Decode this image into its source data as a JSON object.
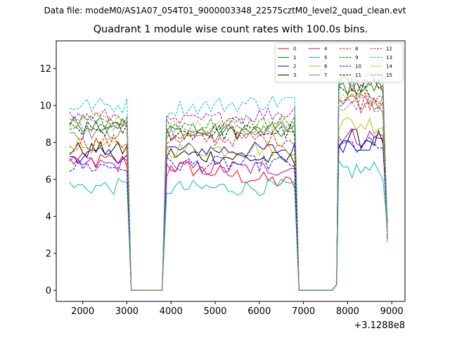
{
  "suptitle": "Data file: modeM0/AS1A07_054T01_9000003348_22575cztM0_level2_quad_clean.evt",
  "colors": [
    "#ff0000",
    "#008000",
    "#0000ff",
    "#000000",
    "#bf00bf",
    "#00bfbf",
    "#bfbf00",
    "#808080"
  ],
  "chart_data": {
    "type": "line",
    "title": "Quadrant 1 module wise count rates with 100.0s bins.",
    "offset_label": "+3.1288e8",
    "xlim": [
      1400,
      9300
    ],
    "ylim": [
      -0.6,
      13.5
    ],
    "xticks": [
      2000,
      3000,
      4000,
      5000,
      6000,
      7000,
      8000,
      9000
    ],
    "yticks": [
      0,
      2,
      4,
      6,
      8,
      10,
      12
    ],
    "legend": "top-right",
    "gaps": [
      [
        3100,
        3800
      ],
      [
        6900,
        7650
      ]
    ],
    "segments": [
      [
        1700,
        3100
      ],
      [
        3800,
        6900
      ],
      [
        7650,
        8900
      ]
    ],
    "series": [
      {
        "name": "0",
        "values": [
          7.0,
          6.8,
          5.7,
          11.2
        ]
      },
      {
        "name": "1",
        "values": [
          9.0,
          8.6,
          8.6,
          11.0
        ]
      },
      {
        "name": "2",
        "values": [
          7.3,
          7.6,
          7.6,
          8.0
        ]
      },
      {
        "name": "3",
        "values": [
          7.6,
          7.4,
          7.0,
          8.2
        ]
      },
      {
        "name": "4",
        "values": [
          6.8,
          6.6,
          6.6,
          8.3
        ]
      },
      {
        "name": "5",
        "values": [
          5.6,
          5.5,
          5.6,
          6.5
        ]
      },
      {
        "name": "6",
        "values": [
          7.8,
          7.6,
          7.7,
          9.0
        ]
      },
      {
        "name": "7",
        "values": [
          8.6,
          8.3,
          8.7,
          10.0
        ]
      },
      {
        "name": "8",
        "values": [
          8.0,
          8.2,
          8.2,
          10.3
        ]
      },
      {
        "name": "9",
        "values": [
          9.1,
          8.9,
          9.1,
          11.2
        ]
      },
      {
        "name": "10",
        "values": [
          6.7,
          6.8,
          6.9,
          7.8
        ]
      },
      {
        "name": "11",
        "values": [
          8.7,
          8.5,
          8.6,
          10.6
        ]
      },
      {
        "name": "12",
        "values": [
          9.4,
          9.0,
          9.7,
          10.4
        ]
      },
      {
        "name": "13",
        "values": [
          10.0,
          9.8,
          10.3,
          11.5
        ]
      },
      {
        "name": "14",
        "values": [
          9.3,
          8.8,
          8.9,
          10.5
        ]
      },
      {
        "name": "15",
        "values": [
          8.9,
          8.6,
          9.0,
          10.2
        ]
      }
    ]
  }
}
